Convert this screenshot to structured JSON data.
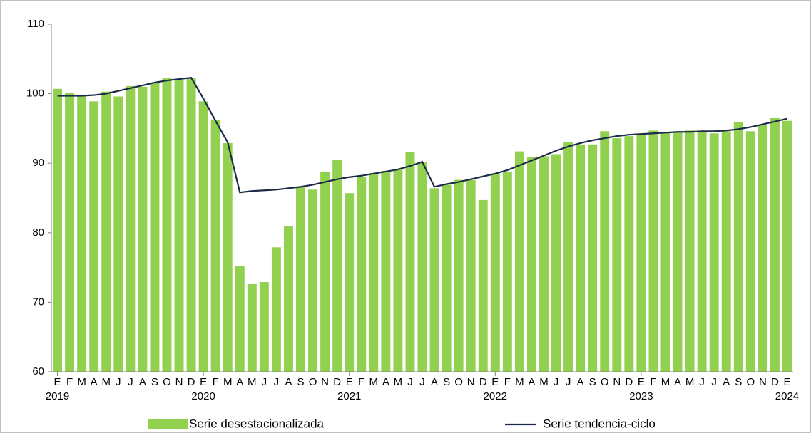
{
  "chart_data": {
    "type": "bar_line",
    "categories": [
      "E",
      "F",
      "M",
      "A",
      "M",
      "J",
      "J",
      "A",
      "S",
      "O",
      "N",
      "D",
      "E",
      "F",
      "M",
      "A",
      "M",
      "J",
      "J",
      "A",
      "S",
      "O",
      "N",
      "D",
      "E",
      "F",
      "M",
      "A",
      "M",
      "J",
      "J",
      "A",
      "S",
      "O",
      "N",
      "D",
      "E",
      "F",
      "M",
      "A",
      "M",
      "J",
      "J",
      "A",
      "S",
      "O",
      "N",
      "D",
      "E",
      "F",
      "M",
      "A",
      "M",
      "J",
      "J",
      "A",
      "S",
      "O",
      "N",
      "D",
      "E"
    ],
    "years": [
      "2019",
      "2020",
      "2021",
      "2022",
      "2023",
      "2024"
    ],
    "series": [
      {
        "name": "Serie desestacionalizada",
        "type": "bar",
        "color": "#92d050",
        "values": [
          100.7,
          100.1,
          99.6,
          98.9,
          100.3,
          99.6,
          101.1,
          101.0,
          101.6,
          102.2,
          102.0,
          102.2,
          98.9,
          96.2,
          92.9,
          75.2,
          72.6,
          72.9,
          77.9,
          81.0,
          86.6,
          86.2,
          88.8,
          90.5,
          85.7,
          88.0,
          88.6,
          88.9,
          89.1,
          91.6,
          90.1,
          86.4,
          86.9,
          87.6,
          87.6,
          84.7,
          88.5,
          88.8,
          91.7,
          90.9,
          91.0,
          91.3,
          93.0,
          92.7,
          92.7,
          94.6,
          93.6,
          93.9,
          94.1,
          94.7,
          94.4,
          94.4,
          94.7,
          94.5,
          94.3,
          94.6,
          95.9,
          94.6,
          95.5,
          96.5,
          96.1
        ]
      },
      {
        "name": "Serie tendencia-ciclo",
        "type": "line",
        "color": "#1c2b4a",
        "values": [
          99.7,
          99.7,
          99.7,
          99.8,
          100.0,
          100.4,
          100.8,
          101.2,
          101.6,
          101.9,
          102.1,
          102.3,
          99.3,
          96.1,
          93.0,
          85.8,
          86.0,
          86.1,
          86.2,
          86.4,
          86.6,
          86.9,
          87.3,
          87.7,
          88.0,
          88.2,
          88.5,
          88.8,
          89.1,
          89.6,
          90.2,
          86.6,
          87.0,
          87.3,
          87.7,
          88.1,
          88.5,
          89.0,
          89.7,
          90.4,
          91.1,
          91.8,
          92.4,
          92.9,
          93.3,
          93.6,
          93.9,
          94.1,
          94.2,
          94.3,
          94.4,
          94.5,
          94.5,
          94.6,
          94.6,
          94.7,
          94.9,
          95.2,
          95.6,
          96.0,
          96.4
        ]
      }
    ],
    "ylim": [
      60,
      110
    ],
    "yticks": [
      60,
      70,
      80,
      90,
      100,
      110
    ],
    "grid": false
  }
}
